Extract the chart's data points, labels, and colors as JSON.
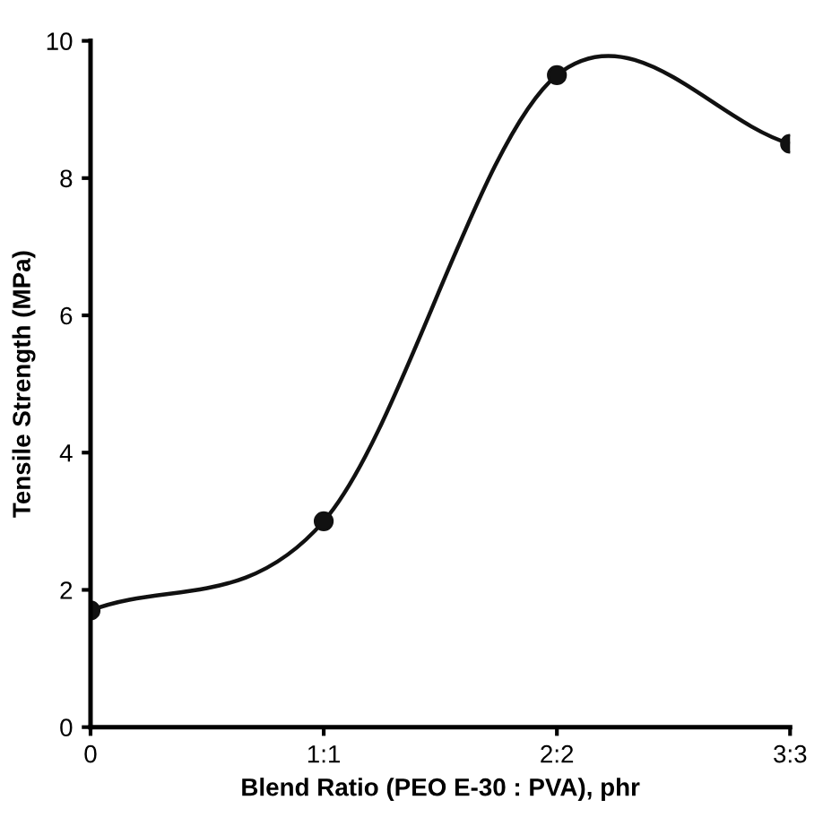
{
  "chart_data": {
    "type": "line",
    "xlabel": "Blend Ratio (PEO E-30 : PVA), phr",
    "ylabel": "Tensile Strength (MPa)",
    "categories": [
      "0",
      "1:1",
      "2:2",
      "3:3"
    ],
    "series": [
      {
        "color": "#111111",
        "values": [
          1.7,
          3.0,
          9.5,
          8.5
        ]
      }
    ],
    "ylim": [
      0,
      10
    ],
    "yticks": [
      0,
      2,
      4,
      6,
      8,
      10
    ],
    "marker": "circle",
    "line_style": "solid",
    "grid": false,
    "legend": false
  }
}
